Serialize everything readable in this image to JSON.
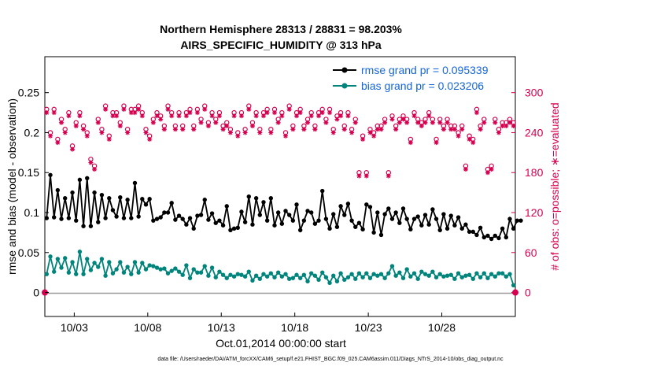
{
  "chart_data": {
    "type": "line",
    "title": "Northern Hemisphere 28313 / 28831 = 98.203%",
    "subtitle": "AIRS_SPECIFIC_HUMIDITY @ 313 hPa",
    "xlabel": "Oct.01,2014 00:00:00 start",
    "ylabel": "rmse and bias (model - observation)",
    "y2label": "# of obs: o=possible; ∗=evaluated",
    "xlim": [
      0,
      128
    ],
    "ylim": [
      -0.03,
      0.295
    ],
    "y2lim": [
      -36,
      354
    ],
    "x_ticks": [
      8,
      28,
      48,
      68,
      88,
      108
    ],
    "x_tick_labels": [
      "10/03",
      "10/08",
      "10/13",
      "10/18",
      "10/23",
      "10/28"
    ],
    "y_ticks": [
      0,
      0.05,
      0.1,
      0.15,
      0.2,
      0.25
    ],
    "y_tick_labels": [
      "0",
      "0.05",
      "0.1",
      "0.15",
      "0.2",
      "0.25"
    ],
    "y2_ticks": [
      0,
      60,
      120,
      180,
      240,
      300
    ],
    "y2_tick_labels": [
      "0",
      "60",
      "120",
      "180",
      "240",
      "300"
    ],
    "colors": {
      "rmse": "#000000",
      "bias": "#00857c",
      "obs": "#d6004f",
      "legend_text": "#1565d8",
      "zero_line": "#9a9a9a"
    },
    "series": [
      {
        "name": "rmse grand pr = 0.095339",
        "values": [
          0.093,
          0.147,
          0.094,
          0.128,
          0.092,
          0.118,
          0.093,
          0.125,
          0.09,
          0.141,
          0.083,
          0.143,
          0.083,
          0.125,
          0.088,
          0.122,
          0.093,
          0.118,
          0.103,
          0.095,
          0.119,
          0.093,
          0.116,
          0.093,
          0.137,
          0.095,
          0.117,
          0.11,
          0.117,
          0.09,
          0.092,
          0.094,
          0.1,
          0.1,
          0.112,
          0.091,
          0.096,
          0.092,
          0.085,
          0.093,
          0.08,
          0.096,
          0.097,
          0.116,
          0.091,
          0.099,
          0.087,
          0.09,
          0.084,
          0.108,
          0.078,
          0.08,
          0.081,
          0.101,
          0.088,
          0.12,
          0.085,
          0.118,
          0.097,
          0.113,
          0.09,
          0.118,
          0.084,
          0.1,
          0.086,
          0.102,
          0.097,
          0.09,
          0.11,
          0.078,
          0.09,
          0.102,
          0.1,
          0.086,
          0.09,
          0.127,
          0.092,
          0.08,
          0.098,
          0.082,
          0.108,
          0.097,
          0.111,
          0.09,
          0.082,
          0.087,
          0.079,
          0.11,
          0.107,
          0.075,
          0.1,
          0.072,
          0.098,
          0.105,
          0.092,
          0.1,
          0.087,
          0.105,
          0.092,
          0.079,
          0.092,
          0.095,
          0.084,
          0.097,
          0.085,
          0.104,
          0.092,
          0.078,
          0.098,
          0.08,
          0.096,
          0.084,
          0.094,
          0.08,
          0.085,
          0.076,
          0.076,
          0.072,
          0.081,
          0.069,
          0.071,
          0.067,
          0.071,
          0.068,
          0.08,
          0.069,
          0.092,
          0.08,
          0.09,
          0.09
        ]
      },
      {
        "name": "bias grand pr = 0.023206",
        "values": [
          0.023,
          0.045,
          0.026,
          0.042,
          0.031,
          0.043,
          0.025,
          0.038,
          0.023,
          0.051,
          0.023,
          0.042,
          0.028,
          0.037,
          0.032,
          0.042,
          0.021,
          0.038,
          0.024,
          0.029,
          0.038,
          0.025,
          0.032,
          0.023,
          0.038,
          0.025,
          0.037,
          0.029,
          0.034,
          0.033,
          0.031,
          0.029,
          0.03,
          0.024,
          0.027,
          0.03,
          0.026,
          0.022,
          0.034,
          0.018,
          0.029,
          0.025,
          0.025,
          0.033,
          0.021,
          0.031,
          0.019,
          0.026,
          0.022,
          0.018,
          0.022,
          0.02,
          0.023,
          0.022,
          0.02,
          0.026,
          0.015,
          0.021,
          0.017,
          0.023,
          0.02,
          0.024,
          0.019,
          0.025,
          0.02,
          0.023,
          0.017,
          0.018,
          0.022,
          0.018,
          0.022,
          0.014,
          0.024,
          0.021,
          0.016,
          0.025,
          0.019,
          0.012,
          0.021,
          0.014,
          0.024,
          0.016,
          0.019,
          0.023,
          0.017,
          0.024,
          0.019,
          0.024,
          0.018,
          0.023,
          0.021,
          0.023,
          0.018,
          0.024,
          0.033,
          0.021,
          0.025,
          0.018,
          0.029,
          0.02,
          0.024,
          0.017,
          0.026,
          0.023,
          0.021,
          0.026,
          0.019,
          0.023,
          0.02,
          0.021,
          0.022,
          0.017,
          0.024,
          0.019,
          0.021,
          0.022,
          0.017,
          0.024,
          0.019,
          0.024,
          0.018,
          0.023,
          0.02,
          0.024,
          0.024,
          0.02,
          0.023,
          0.009
        ]
      }
    ],
    "obs_evaluated": [
      270,
      235,
      270,
      225,
      255,
      240,
      265,
      215,
      250,
      265,
      245,
      235,
      195,
      185,
      255,
      240,
      275,
      230,
      265,
      265,
      250,
      275,
      240,
      270,
      270,
      275,
      265,
      240,
      230,
      255,
      265,
      260,
      245,
      275,
      265,
      245,
      265,
      245,
      265,
      270,
      245,
      270,
      255,
      275,
      250,
      265,
      255,
      265,
      245,
      250,
      240,
      265,
      235,
      265,
      240,
      275,
      250,
      265,
      240,
      265,
      270,
      240,
      270,
      255,
      265,
      235,
      275,
      245,
      265,
      270,
      245,
      255,
      265,
      245,
      265,
      270,
      255,
      270,
      240,
      260,
      265,
      245,
      265,
      240,
      255,
      175,
      230,
      175,
      240,
      235,
      245,
      245,
      255,
      175,
      260,
      245,
      255,
      260,
      255,
      225,
      265,
      255,
      250,
      255,
      265,
      255,
      225,
      255,
      245,
      255,
      245,
      245,
      235,
      245,
      185,
      230,
      225,
      270,
      245,
      255,
      180,
      185,
      255,
      240,
      250,
      250,
      255,
      250
    ],
    "obs_possible": [
      275,
      240,
      275,
      230,
      260,
      245,
      270,
      220,
      255,
      270,
      250,
      240,
      200,
      190,
      260,
      245,
      280,
      235,
      270,
      270,
      255,
      280,
      245,
      275,
      275,
      280,
      270,
      245,
      235,
      260,
      270,
      265,
      250,
      280,
      270,
      250,
      270,
      250,
      270,
      275,
      250,
      275,
      260,
      280,
      255,
      270,
      260,
      270,
      250,
      255,
      245,
      270,
      240,
      270,
      245,
      280,
      255,
      270,
      245,
      270,
      275,
      245,
      275,
      260,
      270,
      240,
      280,
      250,
      270,
      275,
      250,
      260,
      270,
      250,
      270,
      275,
      260,
      275,
      245,
      265,
      270,
      250,
      270,
      245,
      260,
      180,
      235,
      180,
      245,
      240,
      250,
      250,
      260,
      180,
      265,
      250,
      260,
      265,
      260,
      230,
      270,
      260,
      255,
      260,
      270,
      260,
      230,
      260,
      250,
      260,
      250,
      250,
      240,
      250,
      190,
      235,
      230,
      275,
      250,
      260,
      185,
      190,
      260,
      245,
      255,
      255,
      260,
      255
    ]
  },
  "footer": "data file: /Users/raeder/DAI/ATM_forcXX/CAM6_setup/f.e21.FHIST_BGC.f09_025.CAM6assim.011/Diags_NTrS_2014-10/obs_diag_output.nc"
}
